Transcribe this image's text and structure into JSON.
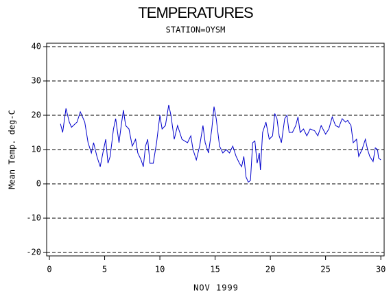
{
  "chart_data": {
    "type": "line",
    "title": "TEMPERATURES",
    "subtitle": "STATION=OYSM",
    "x_label": "NOV 1999",
    "y_label": "Mean Temp. deg-C",
    "xlim": [
      -0.25,
      30.3
    ],
    "ylim": [
      -21,
      41
    ],
    "xticks": [
      0,
      5,
      10,
      15,
      20,
      25,
      30
    ],
    "yticks": [
      -20,
      -10,
      0,
      10,
      20,
      30,
      40
    ],
    "grid": true,
    "x": [
      1.0,
      1.2,
      1.5,
      1.8,
      2.0,
      2.5,
      2.8,
      3.2,
      3.5,
      3.8,
      4.0,
      4.3,
      4.6,
      4.9,
      5.1,
      5.3,
      5.5,
      5.8,
      6.0,
      6.3,
      6.5,
      6.7,
      6.9,
      7.2,
      7.5,
      7.8,
      8.0,
      8.3,
      8.5,
      8.7,
      8.9,
      9.1,
      9.4,
      9.7,
      10.0,
      10.2,
      10.5,
      10.8,
      11.0,
      11.3,
      11.6,
      12.0,
      12.5,
      12.8,
      13.0,
      13.3,
      13.6,
      13.9,
      14.1,
      14.4,
      14.7,
      14.9,
      15.1,
      15.4,
      15.7,
      16.0,
      16.3,
      16.6,
      16.9,
      17.2,
      17.4,
      17.6,
      17.8,
      18.0,
      18.2,
      18.4,
      18.6,
      18.8,
      19.0,
      19.1,
      19.3,
      19.6,
      19.9,
      20.2,
      20.4,
      20.6,
      20.8,
      21.0,
      21.3,
      21.5,
      21.7,
      22.0,
      22.3,
      22.5,
      22.7,
      23.0,
      23.3,
      23.6,
      24.0,
      24.3,
      24.6,
      25.0,
      25.3,
      25.6,
      25.9,
      26.2,
      26.5,
      26.8,
      27.0,
      27.3,
      27.5,
      27.8,
      28.0,
      28.3,
      28.6,
      28.8,
      29.0,
      29.3,
      29.5,
      29.7,
      29.8,
      30.0
    ],
    "series": [
      {
        "name": "Mean Temp",
        "color": "#0000cc",
        "values": [
          17.5,
          15,
          22,
          18,
          16.5,
          18,
          21,
          18,
          12,
          9,
          12,
          8,
          5,
          10,
          13,
          6,
          8,
          16,
          19,
          12,
          17,
          21.5,
          17,
          16,
          11,
          13,
          9,
          7,
          5,
          11,
          13,
          6,
          6,
          12,
          20,
          16,
          17,
          23,
          20,
          13,
          17,
          13,
          12,
          14,
          10,
          7,
          11,
          17,
          12,
          9,
          16,
          22.5,
          19,
          11,
          9,
          10,
          9,
          11,
          8,
          6,
          5,
          8,
          2,
          0.5,
          1,
          12,
          12.5,
          6,
          9,
          4,
          15,
          18,
          13,
          14,
          20.5,
          19,
          14,
          12,
          19,
          20,
          15,
          15,
          17,
          19.5,
          15,
          16,
          14,
          16,
          15.5,
          14,
          17,
          14.5,
          16,
          19.5,
          17,
          16.5,
          19,
          18,
          18.5,
          17,
          12,
          13,
          8,
          10,
          13,
          10,
          8,
          6.5,
          10.5,
          10,
          7.5,
          7
        ]
      }
    ]
  }
}
